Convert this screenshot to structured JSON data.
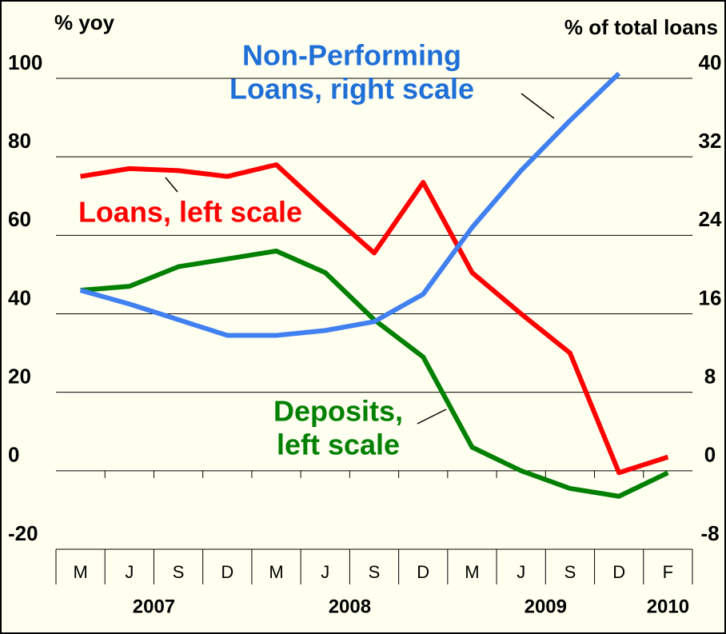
{
  "chart_data": {
    "type": "line",
    "y_label": "% yoy",
    "y2_label": "% of total loans",
    "categories": [
      "M",
      "J",
      "S",
      "D",
      "M",
      "J",
      "S",
      "D",
      "M",
      "J",
      "S",
      "D",
      "F"
    ],
    "x_groups": [
      {
        "label": "2007",
        "count": 4
      },
      {
        "label": "2008",
        "count": 4
      },
      {
        "label": "2009",
        "count": 4
      },
      {
        "label": "2010",
        "count": 1
      }
    ],
    "ylim": [
      -20,
      100
    ],
    "yticks": [
      -20,
      0,
      20,
      40,
      60,
      80,
      100
    ],
    "y2lim": [
      -8,
      40
    ],
    "y2ticks": [
      -8,
      0,
      8,
      16,
      24,
      32,
      40
    ],
    "grid": true,
    "series": [
      {
        "name": "Loans, left scale",
        "color": "#ff0000",
        "values": [
          75,
          77,
          76.5,
          75,
          78,
          66.5,
          55.5,
          73.5,
          50.5,
          40,
          30,
          -0.5,
          3.5
        ]
      },
      {
        "name": "Deposits, left scale",
        "color": "#008000",
        "values": [
          46,
          47,
          52,
          54,
          56,
          50.5,
          38.5,
          29,
          6,
          0,
          -4.5,
          -6.5,
          -0.5
        ]
      },
      {
        "name": "Non-Performing Loans, right scale",
        "color": "#4080f0",
        "axis": "y2",
        "values": [
          18.4,
          17,
          15.4,
          13.8,
          13.8,
          14.3,
          15.2,
          18,
          24.8,
          30.6,
          35.7,
          40.5,
          null
        ]
      }
    ],
    "annotations": [
      {
        "lines": [
          "Non-Performing",
          "Loans, right scale"
        ],
        "color": "#1f6fd6"
      },
      {
        "lines": [
          "Loans, left scale"
        ],
        "color": "#ff0000"
      },
      {
        "lines": [
          "Deposits,",
          "left scale"
        ],
        "color": "#008000"
      }
    ]
  }
}
